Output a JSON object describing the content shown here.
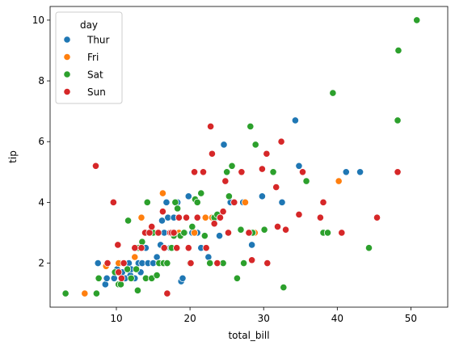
{
  "chart_data": {
    "type": "scatter",
    "xlabel": "total_bill",
    "ylabel": "tip",
    "xlim": [
      1.0,
      55.0
    ],
    "ylim": [
      0.55,
      10.45
    ],
    "xticks": [
      10,
      20,
      30,
      40,
      50
    ],
    "yticks": [
      2,
      4,
      6,
      8,
      10
    ],
    "grid": false,
    "legend": {
      "title": "day",
      "placement": "top-left"
    },
    "series": [
      {
        "name": "Thur",
        "color": "#1f77b4",
        "points": [
          [
            7.5,
            2.0
          ],
          [
            8.5,
            1.3
          ],
          [
            8.7,
            1.5
          ],
          [
            9.7,
            1.5
          ],
          [
            10.1,
            1.8
          ],
          [
            10.5,
            2.0
          ],
          [
            10.8,
            1.7
          ],
          [
            11.2,
            1.5
          ],
          [
            11.7,
            2.0
          ],
          [
            11.9,
            1.6
          ],
          [
            12.0,
            1.8
          ],
          [
            12.5,
            1.5
          ],
          [
            13.0,
            2.0
          ],
          [
            13.3,
            1.7
          ],
          [
            13.5,
            2.0
          ],
          [
            14.0,
            2.5
          ],
          [
            14.3,
            2.0
          ],
          [
            15.0,
            2.0
          ],
          [
            15.5,
            2.2
          ],
          [
            16.0,
            2.6
          ],
          [
            16.2,
            3.4
          ],
          [
            16.5,
            3.0
          ],
          [
            16.8,
            4.0
          ],
          [
            17.0,
            3.5
          ],
          [
            17.3,
            2.5
          ],
          [
            17.8,
            3.5
          ],
          [
            18.0,
            3.0
          ],
          [
            18.3,
            4.0
          ],
          [
            18.8,
            1.4
          ],
          [
            19.0,
            1.5
          ],
          [
            19.3,
            3.0
          ],
          [
            19.8,
            4.2
          ],
          [
            20.3,
            3.0
          ],
          [
            21.0,
            3.0
          ],
          [
            21.5,
            2.5
          ],
          [
            22.5,
            2.2
          ],
          [
            23.5,
            3.5
          ],
          [
            24.0,
            2.9
          ],
          [
            24.6,
            5.9
          ],
          [
            25.5,
            4.0
          ],
          [
            27.2,
            4.0
          ],
          [
            28.4,
            2.6
          ],
          [
            29.8,
            4.2
          ],
          [
            32.5,
            4.0
          ],
          [
            34.3,
            6.7
          ],
          [
            34.8,
            5.2
          ],
          [
            38.1,
            4.0
          ],
          [
            41.2,
            5.0
          ],
          [
            43.1,
            5.0
          ]
        ]
      },
      {
        "name": "Fri",
        "color": "#ff7f0e",
        "points": [
          [
            5.7,
            1.0
          ],
          [
            8.6,
            1.9
          ],
          [
            10.3,
            2.0
          ],
          [
            12.5,
            2.2
          ],
          [
            13.4,
            3.5
          ],
          [
            15.4,
            3.0
          ],
          [
            16.3,
            4.3
          ],
          [
            16.5,
            2.5
          ],
          [
            18.5,
            3.0
          ],
          [
            20.6,
            3.0
          ],
          [
            22.1,
            3.5
          ],
          [
            23.0,
            3.5
          ],
          [
            27.5,
            4.0
          ],
          [
            28.8,
            3.0
          ],
          [
            40.2,
            4.7
          ]
        ]
      },
      {
        "name": "Sat",
        "color": "#2ca02c",
        "points": [
          [
            3.1,
            1.0
          ],
          [
            7.3,
            1.0
          ],
          [
            7.6,
            1.5
          ],
          [
            9.8,
            1.7
          ],
          [
            10.3,
            1.3
          ],
          [
            10.6,
            1.3
          ],
          [
            11.5,
            1.8
          ],
          [
            12.0,
            1.5
          ],
          [
            11.6,
            3.4
          ],
          [
            12.7,
            1.8
          ],
          [
            12.9,
            1.1
          ],
          [
            13.0,
            2.5
          ],
          [
            13.5,
            2.7
          ],
          [
            14.0,
            1.5
          ],
          [
            14.2,
            4.0
          ],
          [
            14.8,
            1.5
          ],
          [
            15.0,
            3.0
          ],
          [
            15.5,
            1.6
          ],
          [
            15.8,
            2.0
          ],
          [
            16.4,
            2.0
          ],
          [
            16.9,
            2.0
          ],
          [
            17.5,
            2.5
          ],
          [
            17.8,
            2.9
          ],
          [
            18.0,
            4.0
          ],
          [
            18.3,
            3.8
          ],
          [
            18.7,
            2.9
          ],
          [
            19.2,
            3.0
          ],
          [
            20.0,
            2.0
          ],
          [
            20.3,
            3.2
          ],
          [
            20.7,
            4.1
          ],
          [
            21.0,
            4.0
          ],
          [
            21.5,
            4.3
          ],
          [
            22.0,
            2.9
          ],
          [
            22.7,
            2.0
          ],
          [
            23.3,
            3.5
          ],
          [
            23.7,
            3.6
          ],
          [
            24.5,
            2.0
          ],
          [
            25.0,
            5.0
          ],
          [
            25.3,
            4.2
          ],
          [
            25.7,
            5.2
          ],
          [
            26.0,
            4.0
          ],
          [
            26.4,
            1.5
          ],
          [
            26.9,
            3.1
          ],
          [
            27.3,
            2.0
          ],
          [
            28.2,
            6.5
          ],
          [
            28.5,
            3.0
          ],
          [
            28.9,
            5.9
          ],
          [
            30.1,
            3.1
          ],
          [
            31.3,
            5.0
          ],
          [
            32.7,
            1.2
          ],
          [
            35.8,
            4.7
          ],
          [
            38.1,
            3.0
          ],
          [
            38.7,
            3.0
          ],
          [
            39.4,
            7.6
          ],
          [
            44.3,
            2.5
          ],
          [
            48.2,
            6.7
          ],
          [
            48.3,
            9.0
          ],
          [
            50.8,
            10.0
          ]
        ]
      },
      {
        "name": "Sun",
        "color": "#d62728",
        "points": [
          [
            7.2,
            5.2
          ],
          [
            8.8,
            2.0
          ],
          [
            9.6,
            4.0
          ],
          [
            10.2,
            2.6
          ],
          [
            10.3,
            1.7
          ],
          [
            10.7,
            1.5
          ],
          [
            11.0,
            2.0
          ],
          [
            12.5,
            2.5
          ],
          [
            13.4,
            2.5
          ],
          [
            13.9,
            3.0
          ],
          [
            14.5,
            3.0
          ],
          [
            14.8,
            3.2
          ],
          [
            15.7,
            3.0
          ],
          [
            16.3,
            3.7
          ],
          [
            16.5,
            2.5
          ],
          [
            16.9,
            1.0
          ],
          [
            17.3,
            3.0
          ],
          [
            17.5,
            3.0
          ],
          [
            17.8,
            3.0
          ],
          [
            18.2,
            2.5
          ],
          [
            18.5,
            3.5
          ],
          [
            19.5,
            3.5
          ],
          [
            19.8,
            2.5
          ],
          [
            20.1,
            2.0
          ],
          [
            20.6,
            5.0
          ],
          [
            21.0,
            3.5
          ],
          [
            21.8,
            5.0
          ],
          [
            22.2,
            2.5
          ],
          [
            22.8,
            6.5
          ],
          [
            23.0,
            5.6
          ],
          [
            23.3,
            3.3
          ],
          [
            23.7,
            2.0
          ],
          [
            24.1,
            3.5
          ],
          [
            24.5,
            3.7
          ],
          [
            24.8,
            4.7
          ],
          [
            25.2,
            3.0
          ],
          [
            26.0,
            4.0
          ],
          [
            27.0,
            5.0
          ],
          [
            28.0,
            3.0
          ],
          [
            28.4,
            2.1
          ],
          [
            29.8,
            5.1
          ],
          [
            30.4,
            5.6
          ],
          [
            30.5,
            2.0
          ],
          [
            31.7,
            4.5
          ],
          [
            31.9,
            3.2
          ],
          [
            32.4,
            6.0
          ],
          [
            33.0,
            3.1
          ],
          [
            34.8,
            3.6
          ],
          [
            35.3,
            5.0
          ],
          [
            37.7,
            3.5
          ],
          [
            38.1,
            4.0
          ],
          [
            40.6,
            3.0
          ],
          [
            45.4,
            3.5
          ],
          [
            48.2,
            5.0
          ]
        ]
      }
    ]
  }
}
